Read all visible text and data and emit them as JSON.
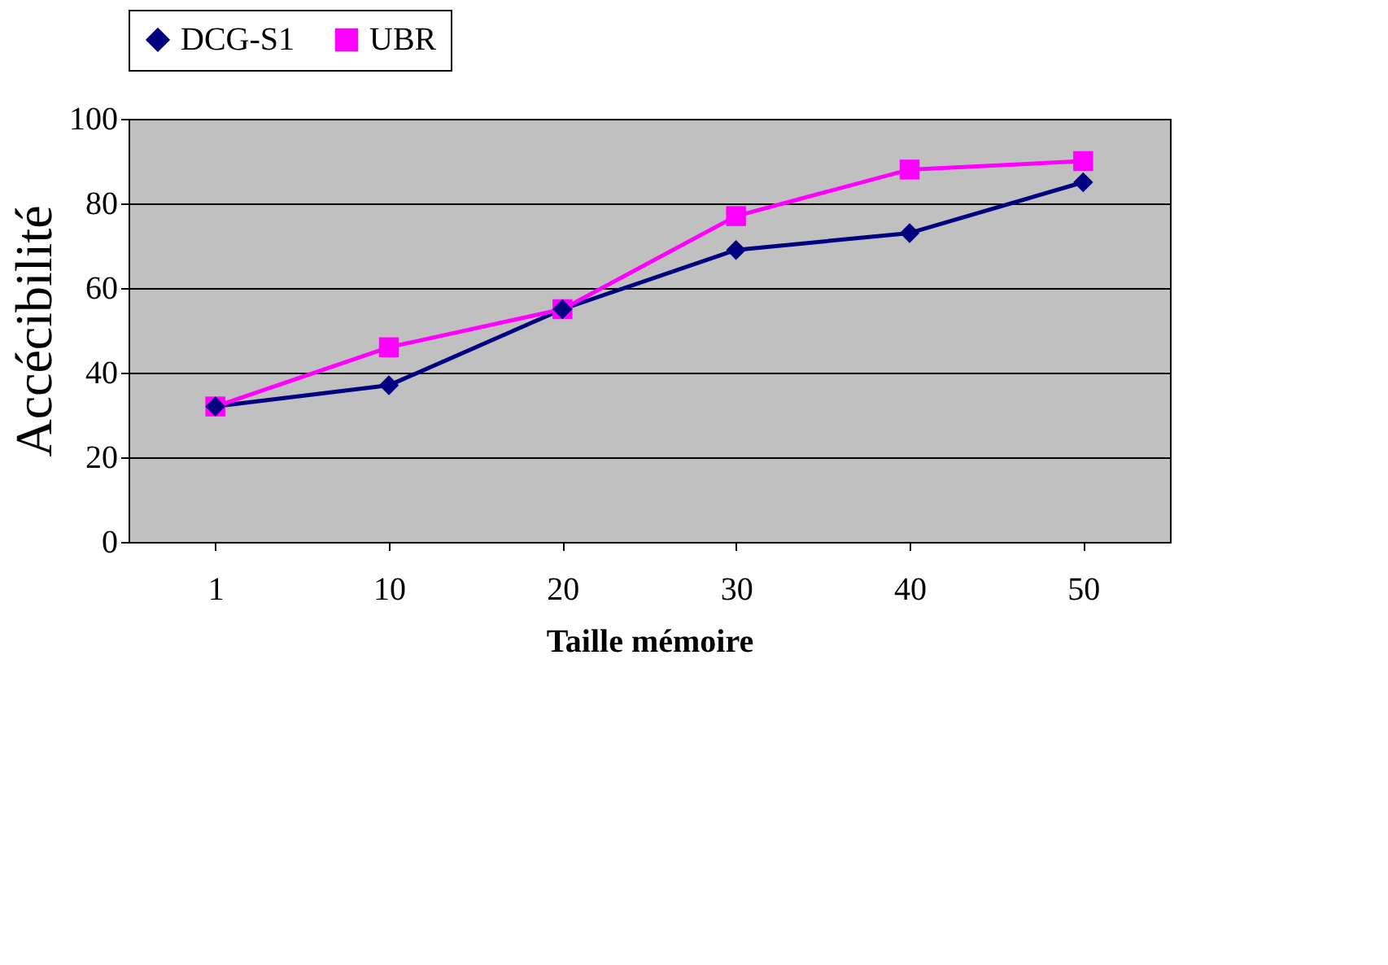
{
  "chart_data": {
    "type": "line",
    "xlabel": "Taille mémoire",
    "ylabel": "Accécibilité",
    "categories": [
      "1",
      "10",
      "20",
      "30",
      "40",
      "50"
    ],
    "series": [
      {
        "name": "DCG-S1",
        "color": "#000080",
        "marker": "diamond",
        "values": [
          32,
          37,
          55,
          69,
          73,
          85
        ]
      },
      {
        "name": "UBR",
        "color": "#ff00ff",
        "marker": "square",
        "values": [
          32,
          46,
          55,
          77,
          88,
          90
        ]
      }
    ],
    "ylim": [
      0,
      100
    ],
    "yticks": [
      0,
      20,
      40,
      60,
      80,
      100
    ],
    "grid": "y",
    "legend": "top"
  }
}
